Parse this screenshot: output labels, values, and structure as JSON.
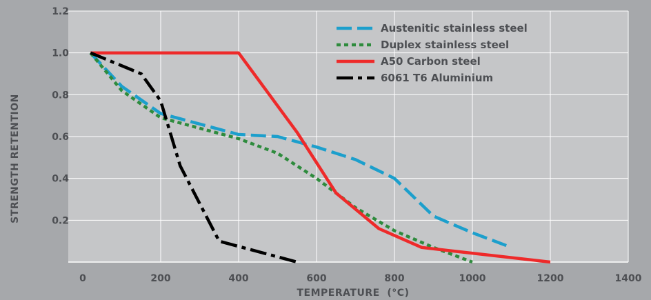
{
  "chart_data": {
    "type": "line",
    "xlabel": "TEMPERATURE  (°C)",
    "ylabel": "STRENGTH RETENTION",
    "xlim": [
      0,
      1400
    ],
    "ylim": [
      0,
      1.2
    ],
    "x_ticks": [
      "0",
      "200",
      "400",
      "600",
      "800",
      "1000",
      "1200",
      "1400"
    ],
    "y_ticks": [
      "1.2",
      "1.0",
      "0.8",
      "0.6",
      "0.4",
      "0.2"
    ],
    "grid": true,
    "legend_position": "top-right",
    "colors": {
      "background": "#a6a8ab",
      "plot_area": "#c5c6c8",
      "grid": "#ffffff",
      "text": "#4d4f53"
    },
    "series": [
      {
        "name": "Austenitic stainless steel",
        "color": "#1c9fcc",
        "dash": "long-dash",
        "x": [
          20,
          100,
          200,
          300,
          400,
          500,
          600,
          700,
          800,
          900,
          1000,
          1100
        ],
        "y": [
          1.0,
          0.84,
          0.71,
          0.66,
          0.61,
          0.6,
          0.55,
          0.49,
          0.4,
          0.22,
          0.14,
          0.07
        ]
      },
      {
        "name": "Duplex stainless steel",
        "color": "#2e8b3d",
        "dash": "dot",
        "x": [
          20,
          100,
          200,
          300,
          400,
          500,
          600,
          700,
          800,
          900,
          1000
        ],
        "y": [
          1.0,
          0.82,
          0.69,
          0.64,
          0.59,
          0.52,
          0.4,
          0.26,
          0.15,
          0.07,
          0.0
        ]
      },
      {
        "name": "A50 Carbon steel",
        "color": "#ee2a2a",
        "dash": "solid",
        "x": [
          20,
          400,
          550,
          650,
          760,
          870,
          1200
        ],
        "y": [
          1.0,
          1.0,
          0.62,
          0.33,
          0.16,
          0.07,
          0.0
        ]
      },
      {
        "name": "6061 T6 Aluminium",
        "color": "#000000",
        "dash": "dash-dot",
        "x": [
          20,
          150,
          200,
          250,
          350,
          550
        ],
        "y": [
          1.0,
          0.9,
          0.77,
          0.46,
          0.1,
          0.0
        ]
      }
    ]
  }
}
